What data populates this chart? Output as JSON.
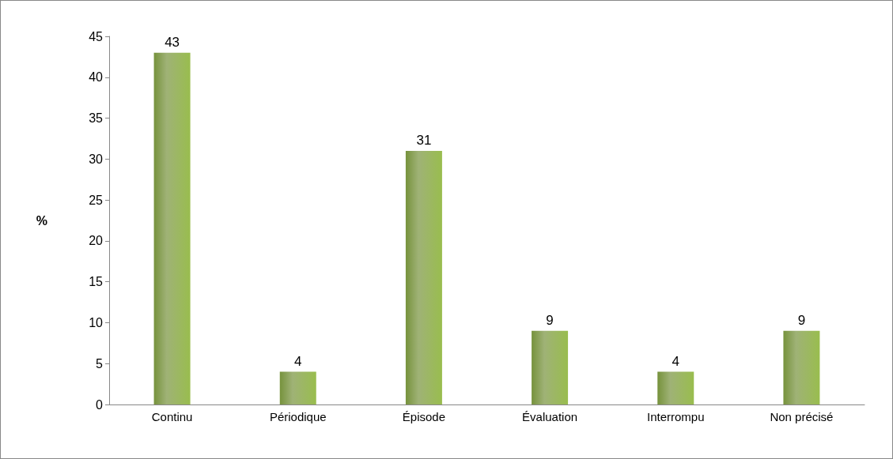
{
  "chart_data": {
    "type": "bar",
    "ylabel": "%",
    "categories": [
      "Continu",
      "Périodique",
      "Épisode",
      "Évaluation",
      "Interrompu",
      "Non précisé"
    ],
    "values": [
      43,
      4,
      31,
      9,
      4,
      9
    ],
    "color": "#76923c",
    "ylim": [
      0,
      45
    ],
    "yticks": [
      0,
      5,
      10,
      15,
      20,
      25,
      30,
      35,
      40,
      45
    ],
    "data_labels": true,
    "grid": false
  }
}
